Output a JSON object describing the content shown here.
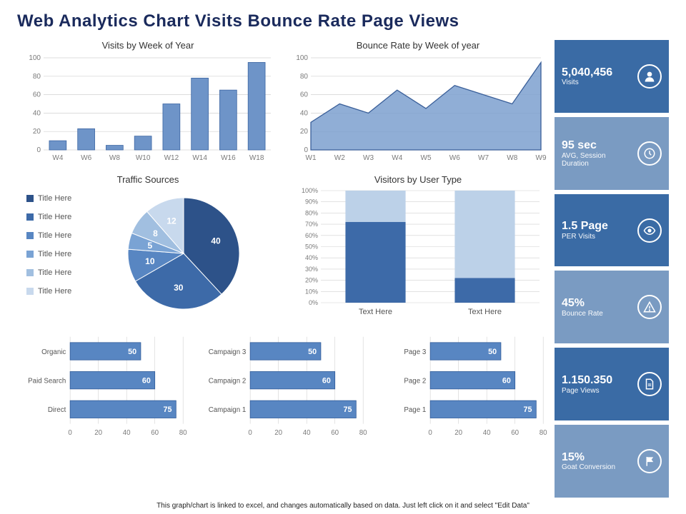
{
  "title": "Web Analytics Chart Visits Bounce Rate Page Views",
  "footnote": "This graph/chart is linked to excel, and changes automatically based on data. Just left click on it and select \"Edit Data\"",
  "colors": {
    "bar_primary": "#4a78b8",
    "bar_stroke": "#2f5a99",
    "area_fill": "#7ca0cf",
    "area_stroke": "#3a5f99",
    "grid": "#d0d0d0",
    "axis_font": "#7a7a7a",
    "legend_font": "#555555"
  },
  "kpi": [
    {
      "value": "5,040,456",
      "label": "Visits",
      "bg": "#3a6ba5",
      "icon": "user"
    },
    {
      "value": "95 sec",
      "label": "AVG, Session Duration",
      "bg": "#7a9bc2",
      "icon": "clock"
    },
    {
      "value": "1.5 Page",
      "label": "PER Visits",
      "bg": "#3a6ba5",
      "icon": "eye"
    },
    {
      "value": "45%",
      "label": "Bounce Rate",
      "bg": "#7a9bc2",
      "icon": "warn"
    },
    {
      "value": "1.150.350",
      "label": "Page Views",
      "bg": "#3a6ba5",
      "icon": "doc"
    },
    {
      "value": "15%",
      "label": "Goat Conversion",
      "bg": "#7a9bc2",
      "icon": "flag"
    }
  ],
  "visits_week": {
    "title": "Visits by Week of Year",
    "categories": [
      "W4",
      "W6",
      "W8",
      "W10",
      "W12",
      "W14",
      "W16",
      "W18"
    ],
    "values": [
      10,
      23,
      5,
      15,
      50,
      78,
      65,
      95
    ],
    "ymax": 100,
    "ystep": 20,
    "bar_color": "#6e94c8",
    "bar_stroke": "#3d66a3"
  },
  "bounce_rate": {
    "title": "Bounce Rate by Week of year",
    "categories": [
      "W1",
      "W2",
      "W3",
      "W4",
      "W5",
      "W6",
      "W7",
      "W8",
      "W9"
    ],
    "values": [
      30,
      50,
      40,
      65,
      45,
      70,
      60,
      50,
      95
    ],
    "ymax": 100,
    "ystep": 20,
    "fill": "#7ca0cf",
    "stroke": "#3a5f99"
  },
  "traffic_sources": {
    "title": "Traffic Sources",
    "legend_label": "Title Here",
    "slices": [
      {
        "value": 40,
        "color": "#2d5289"
      },
      {
        "value": 30,
        "color": "#3d6aa8"
      },
      {
        "value": 10,
        "color": "#5886c2"
      },
      {
        "value": 5,
        "color": "#7aa3d4"
      },
      {
        "value": 8,
        "color": "#a1bfe0"
      },
      {
        "value": 12,
        "color": "#c8d9ed"
      }
    ]
  },
  "visitors_type": {
    "title": "Visitors by User Type",
    "ymax": 100,
    "ystep": 10,
    "x_label": "Text Here",
    "bars": [
      {
        "lower": 72,
        "lower_color": "#3d6aa8",
        "upper_color": "#bcd1e8"
      },
      {
        "lower": 22,
        "lower_color": "#3d6aa8",
        "upper_color": "#bcd1e8"
      }
    ]
  },
  "hbar_groups": [
    {
      "categories": [
        "Organic",
        "Paid Search",
        "Direct"
      ],
      "values": [
        50,
        60,
        75
      ]
    },
    {
      "categories": [
        "Campaign 3",
        "Campaign 2",
        "Campaign 1"
      ],
      "values": [
        50,
        60,
        75
      ]
    },
    {
      "categories": [
        "Page 3",
        "Page 2",
        "Page 1"
      ],
      "values": [
        50,
        60,
        75
      ]
    }
  ],
  "hbar_style": {
    "xmax": 80,
    "xstep": 20,
    "bar_color": "#5886c2",
    "bar_stroke": "#2f5a99",
    "value_color": "#ffffff"
  }
}
